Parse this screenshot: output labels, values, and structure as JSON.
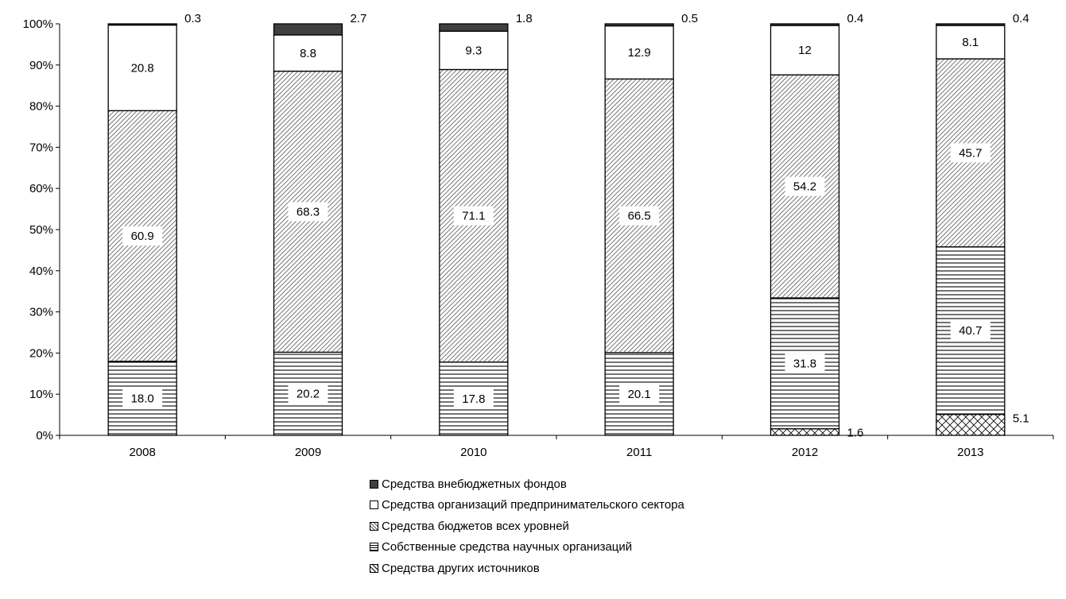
{
  "chart_data": {
    "type": "bar",
    "stacked": true,
    "percent": true,
    "categories": [
      "2008",
      "2009",
      "2010",
      "2011",
      "2012",
      "2013"
    ],
    "ylim": [
      0,
      100
    ],
    "y_ticks": [
      "0%",
      "10%",
      "20%",
      "30%",
      "40%",
      "50%",
      "60%",
      "70%",
      "80%",
      "90%",
      "100%"
    ],
    "series": [
      {
        "name": "Средства других источников",
        "values": [
          0,
          0,
          0,
          0,
          1.6,
          5.1
        ],
        "labels": [
          "",
          "",
          "",
          "",
          "1.6",
          "5.1"
        ],
        "pattern": "cross",
        "label_pos": "outside"
      },
      {
        "name": "Собственные средства научных организаций",
        "values": [
          18.0,
          20.2,
          17.8,
          20.1,
          31.8,
          40.7
        ],
        "labels": [
          "18.0",
          "20.2",
          "17.8",
          "20.1",
          "31.8",
          "40.7"
        ],
        "pattern": "horizontal",
        "label_pos": "inside"
      },
      {
        "name": "Средства бюджетов всех уровней",
        "values": [
          60.9,
          68.3,
          71.1,
          66.5,
          54.2,
          45.7
        ],
        "labels": [
          "60.9",
          "68.3",
          "71.1",
          "66.5",
          "54.2",
          "45.7"
        ],
        "pattern": "diagonal",
        "label_pos": "inside"
      },
      {
        "name": "Средства организаций предпринимательского сектора",
        "values": [
          20.8,
          8.8,
          9.3,
          12.9,
          12,
          8.1
        ],
        "labels": [
          "20.8",
          "8.8",
          "9.3",
          "12.9",
          "12",
          "8.1"
        ],
        "pattern": "white",
        "label_pos": "inside"
      },
      {
        "name": "Средства внебюджетных фондов",
        "values": [
          0.3,
          2.7,
          1.8,
          0.5,
          0.4,
          0.4
        ],
        "labels": [
          "0.3",
          "2.7",
          "1.8",
          "0.5",
          "0.4",
          "0.4"
        ],
        "pattern": "dark",
        "label_pos": "outside"
      }
    ],
    "legend_order": [
      4,
      3,
      2,
      1,
      0
    ],
    "legend_position": "bottom",
    "grid": false,
    "colors": {
      "dark": "#404040",
      "line": "#000000",
      "background": "#ffffff"
    }
  }
}
